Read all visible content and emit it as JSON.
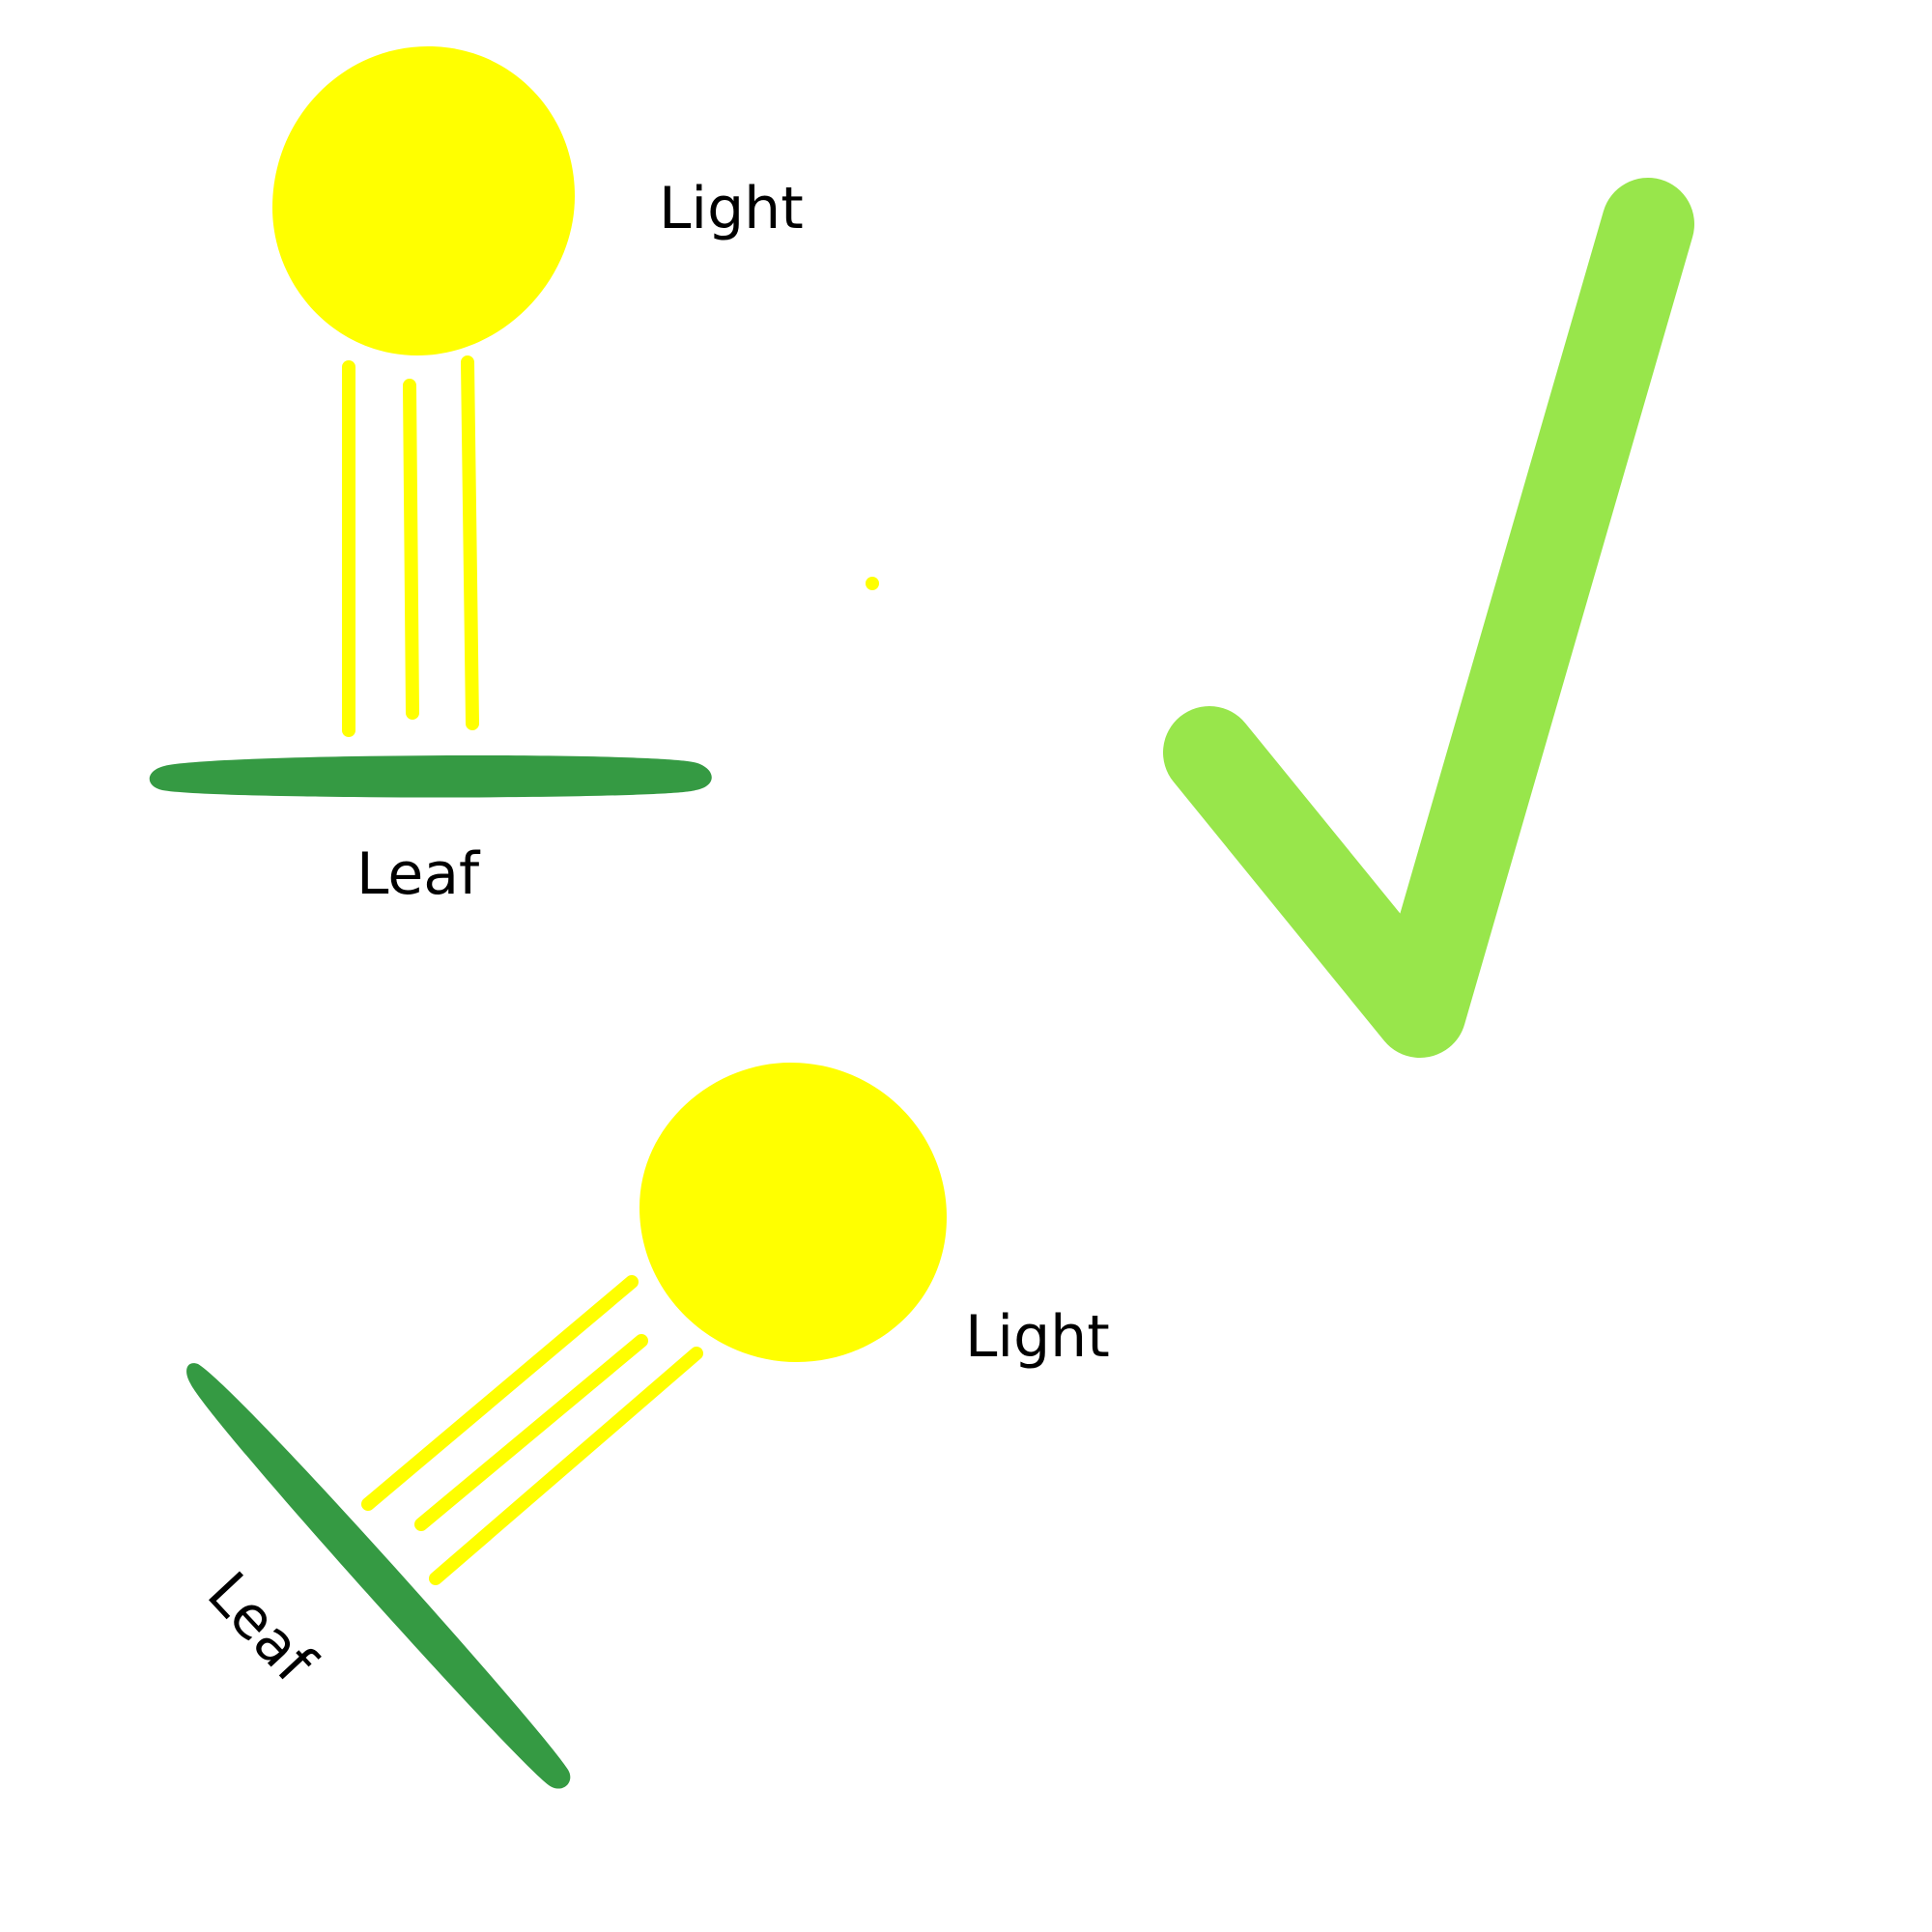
{
  "colors": {
    "light": "#ffff00",
    "leaf": "#359a43",
    "check": "#98e64b",
    "text": "#000000",
    "background": "#ffffff"
  },
  "top_diagram": {
    "light_label": "Light",
    "leaf_label": "Leaf"
  },
  "bottom_diagram": {
    "light_label": "Light",
    "leaf_label": "Leaf"
  },
  "checkmark": {
    "icon": "checkmark-icon"
  }
}
